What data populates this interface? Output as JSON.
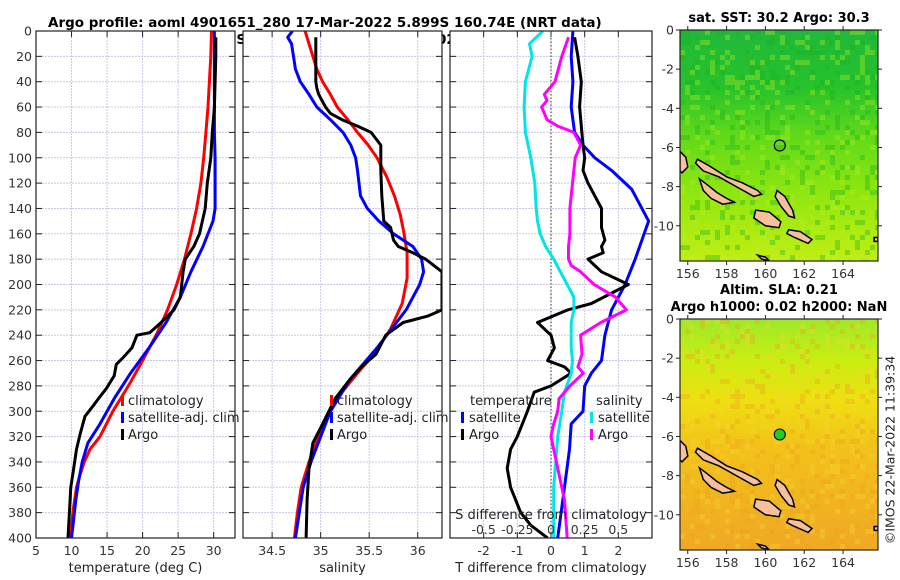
{
  "header": {
    "line1": "Argo profile: aoml 4901651_280 17-Mar-2022 5.899S 160.74E (NRT data)",
    "line2": "Climatology: CARS2009. Satellite-adj clim: synTS_20220317.nc (0.47d earlier)"
  },
  "colors": {
    "climatology": "#ff0000",
    "satellite": "#0000ff",
    "argo": "#000000",
    "sal_satellite": "#00e5e5",
    "sal_argo": "#ff00ff",
    "grid": "#c8c8e6",
    "land": "#f5c09a"
  },
  "copyright": "©IMOS 22-Mar-2022 11:39:34",
  "chart_data": [
    {
      "type": "line",
      "name": "temperature-profile",
      "xlabel": "temperature (deg C)",
      "ylabel": "",
      "xlim": [
        5,
        33
      ],
      "ylim": [
        400,
        0
      ],
      "xticks": [
        5,
        10,
        15,
        20,
        25,
        30
      ],
      "yticks": [
        0,
        20,
        40,
        60,
        80,
        100,
        120,
        140,
        160,
        180,
        200,
        220,
        240,
        260,
        280,
        300,
        320,
        340,
        360,
        380,
        400
      ],
      "grid": true,
      "legend": {
        "placement": "lower-right",
        "entries": [
          "climatology",
          "satellite-adj. clim",
          "Argo"
        ]
      },
      "series": [
        {
          "name": "climatology",
          "color": "#ff0000",
          "x": [
            29.7,
            29.6,
            29.4,
            29.2,
            28.9,
            28.6,
            28.2,
            27.6,
            26.8,
            25.9,
            24.8,
            23.5,
            21.9,
            20.0,
            18.0,
            15.8,
            14.0,
            12.6,
            11.8,
            11.2,
            10.7,
            10.3,
            10.0,
            9.8
          ],
          "depth": [
            0,
            20,
            40,
            60,
            80,
            100,
            120,
            140,
            160,
            180,
            200,
            220,
            240,
            260,
            280,
            300,
            320,
            330,
            340,
            350,
            360,
            375,
            390,
            400
          ]
        },
        {
          "name": "satellite-adj. clim",
          "color": "#0000ff",
          "x": [
            30.1,
            30.1,
            30.1,
            30.1,
            30.1,
            30.2,
            30.2,
            30.2,
            29.9,
            28.5,
            26.8,
            25.3,
            23.3,
            20.9,
            18.3,
            16.0,
            14.0,
            12.3,
            11.5,
            11.0,
            10.6,
            10.2,
            10.0
          ],
          "depth": [
            0,
            20,
            40,
            60,
            80,
            100,
            120,
            140,
            150,
            170,
            190,
            210,
            230,
            250,
            270,
            290,
            310,
            325,
            340,
            355,
            370,
            390,
            400
          ]
        },
        {
          "name": "Argo",
          "color": "#000000",
          "x": [
            30.3,
            30.3,
            30.2,
            30.1,
            29.8,
            29.6,
            29.1,
            28.8,
            28.0,
            27.2,
            26.0,
            25.7,
            25.5,
            25.3,
            24.4,
            22.6,
            21.0,
            19.2,
            18.5,
            17.2,
            16.3,
            16.0,
            14.9,
            13.8,
            13.0,
            11.9,
            11.2,
            10.7,
            10.3,
            9.9,
            9.7,
            9.5
          ],
          "depth": [
            5,
            20,
            40,
            60,
            80,
            100,
            120,
            140,
            160,
            170,
            180,
            190,
            200,
            210,
            220,
            230,
            238,
            240,
            250,
            258,
            263,
            272,
            282,
            290,
            296,
            304,
            318,
            330,
            345,
            360,
            380,
            400
          ]
        }
      ]
    },
    {
      "type": "line",
      "name": "salinity-profile",
      "xlabel": "salinity",
      "xlim": [
        34.2,
        36.25
      ],
      "ylim": [
        400,
        0
      ],
      "xticks": [
        34.5,
        35,
        35.5,
        36
      ],
      "grid": true,
      "legend": {
        "placement": "lower-right",
        "entries": [
          "climatology",
          "satellite-adj. clim",
          "Argo"
        ]
      },
      "series": [
        {
          "name": "climatology",
          "color": "#ff0000",
          "x": [
            34.84,
            34.88,
            34.92,
            34.96,
            35.02,
            35.1,
            35.17,
            35.28,
            35.38,
            35.49,
            35.58,
            35.68,
            35.76,
            35.82,
            35.86,
            35.89,
            35.89,
            35.84,
            35.72,
            35.55,
            35.38,
            35.22,
            35.1,
            34.98,
            34.88,
            34.8,
            34.76,
            34.73
          ],
          "depth": [
            0,
            10,
            20,
            30,
            40,
            50,
            60,
            70,
            80,
            90,
            100,
            115,
            130,
            145,
            160,
            175,
            195,
            215,
            235,
            255,
            270,
            285,
            300,
            320,
            340,
            360,
            380,
            400
          ]
        },
        {
          "name": "satellite-adj. clim",
          "color": "#0000ff",
          "x": [
            34.71,
            34.66,
            34.7,
            34.72,
            34.74,
            34.79,
            34.88,
            34.96,
            35.1,
            35.23,
            35.31,
            35.36,
            35.38,
            35.41,
            35.48,
            35.6,
            35.75,
            35.95,
            36.04,
            36.06,
            36.02,
            35.88,
            35.58,
            35.3,
            35.1,
            35.0,
            34.9,
            34.82,
            34.78,
            34.74
          ],
          "depth": [
            0,
            5,
            10,
            20,
            30,
            40,
            50,
            60,
            70,
            80,
            90,
            100,
            110,
            130,
            140,
            150,
            160,
            170,
            180,
            190,
            200,
            220,
            250,
            275,
            300,
            320,
            340,
            360,
            380,
            400
          ]
        },
        {
          "name": "Argo",
          "color": "#000000",
          "x": [
            34.95,
            34.95,
            34.95,
            34.95,
            34.96,
            34.98,
            35.05,
            35.1,
            35.22,
            35.38,
            35.52,
            35.62,
            35.62,
            35.63,
            35.65,
            35.72,
            35.75,
            35.8,
            35.95,
            36.08,
            36.25,
            36.25,
            36.1,
            35.85,
            35.67,
            35.57,
            35.42,
            35.3,
            35.15,
            35.02,
            34.92,
            34.88,
            34.86,
            34.85
          ],
          "depth": [
            5,
            20,
            30,
            40,
            45,
            50,
            60,
            65,
            70,
            75,
            80,
            90,
            110,
            130,
            150,
            155,
            165,
            170,
            175,
            180,
            190,
            220,
            225,
            230,
            240,
            255,
            265,
            275,
            290,
            310,
            325,
            345,
            370,
            400
          ]
        }
      ]
    },
    {
      "type": "line",
      "name": "difference-profile",
      "xlabel": "T difference from climatology",
      "x2label": "S difference from climatology",
      "xlim": [
        -3,
        3
      ],
      "x2lim": [
        -0.75,
        0.75
      ],
      "ylim": [
        400,
        0
      ],
      "xticks": [
        -2,
        -1,
        0,
        1,
        2
      ],
      "x2ticks": [
        -0.5,
        -0.25,
        0,
        0.25,
        0.5
      ],
      "grid": true,
      "legend": {
        "placement": "lower",
        "groups": [
          {
            "title": "temperature",
            "entries": [
              "satellite",
              "Argo"
            ]
          },
          {
            "title": "salinity",
            "entries": [
              "satellite",
              "Argo"
            ]
          }
        ]
      },
      "series": [
        {
          "name": "temperature satellite",
          "color": "#0000ff",
          "axis": "T",
          "x": [
            0.65,
            0.6,
            0.65,
            0.6,
            0.65,
            0.7,
            0.95,
            1.3,
            1.8,
            2.4,
            2.9,
            2.7,
            2.5,
            2.2,
            1.8,
            1.6,
            1.5,
            1.2,
            1.0,
            0.95,
            0.6,
            0.55,
            0.35,
            0.2
          ],
          "depth": [
            0,
            20,
            40,
            60,
            70,
            80,
            90,
            100,
            110,
            125,
            150,
            165,
            180,
            200,
            220,
            240,
            260,
            270,
            280,
            300,
            310,
            330,
            370,
            400
          ]
        },
        {
          "name": "temperature Argo",
          "color": "#000000",
          "axis": "T",
          "x": [
            0.7,
            0.8,
            0.9,
            0.85,
            0.9,
            0.95,
            1.0,
            0.95,
            1.1,
            1.5,
            1.5,
            1.6,
            1.5,
            1.55,
            1.1,
            1.5,
            2.3,
            1.2,
            0.5,
            -0.4,
            0.0,
            0.1,
            -0.1,
            0.4,
            0.6,
            0.0,
            -0.5,
            -0.7,
            -1.0,
            -1.2,
            -1.3,
            -1.2,
            -0.9,
            -0.6,
            -0.1
          ],
          "depth": [
            5,
            20,
            40,
            60,
            75,
            90,
            100,
            110,
            120,
            140,
            155,
            165,
            170,
            175,
            180,
            190,
            200,
            215,
            220,
            230,
            240,
            250,
            260,
            265,
            270,
            280,
            285,
            300,
            320,
            330,
            345,
            360,
            380,
            390,
            400
          ]
        },
        {
          "name": "salinity satellite",
          "color": "#00e5e5",
          "axis": "S",
          "x": [
            -0.06,
            -0.16,
            -0.14,
            -0.19,
            -0.2,
            -0.19,
            -0.15,
            -0.12,
            -0.11,
            -0.1,
            -0.08,
            -0.04,
            0.02,
            0.07,
            0.12,
            0.17,
            0.17,
            0.15,
            0.15,
            0.16,
            0.15,
            0.1,
            0.08,
            0.05,
            0.02,
            0.02
          ],
          "depth": [
            0,
            10,
            20,
            40,
            60,
            80,
            100,
            120,
            140,
            150,
            160,
            170,
            180,
            190,
            200,
            210,
            220,
            230,
            250,
            260,
            270,
            285,
            300,
            320,
            360,
            400
          ]
        },
        {
          "name": "salinity Argo",
          "color": "#ff00ff",
          "axis": "S",
          "x": [
            0.13,
            0.08,
            0.03,
            -0.05,
            -0.03,
            -0.07,
            -0.03,
            0.05,
            0.17,
            0.22,
            0.18,
            0.16,
            0.14,
            0.14,
            0.13,
            0.13,
            0.15,
            0.22,
            0.32,
            0.48,
            0.56,
            0.37,
            0.22,
            0.23,
            0.2,
            0.24,
            0.14,
            0.06,
            0.05,
            0.02,
            0.0,
            0.04,
            0.1,
            0.12
          ],
          "depth": [
            5,
            20,
            40,
            50,
            55,
            60,
            70,
            75,
            80,
            90,
            100,
            120,
            140,
            160,
            170,
            180,
            185,
            190,
            200,
            210,
            220,
            230,
            240,
            255,
            265,
            270,
            280,
            290,
            300,
            310,
            320,
            340,
            370,
            400
          ]
        }
      ]
    },
    {
      "type": "heatmap",
      "name": "sst-map",
      "title": "sat. SST: 30.2 Argo: 30.3",
      "xlim": [
        155.6,
        165.8
      ],
      "ylim": [
        -11.8,
        0
      ],
      "xticks": [
        156,
        158,
        160,
        162,
        164
      ],
      "yticks": [
        0,
        -2,
        -4,
        -6,
        -8,
        -10
      ],
      "marker": {
        "lon": 160.74,
        "lat": -5.899,
        "style": "open-circle"
      }
    },
    {
      "type": "heatmap",
      "name": "sla-map",
      "title": "Altim. SLA: 0.21",
      "subtitle": "Argo h1000: 0.02 h2000: NaN",
      "xlim": [
        155.6,
        165.8
      ],
      "ylim": [
        -11.8,
        0
      ],
      "xticks": [
        156,
        158,
        160,
        162,
        164
      ],
      "yticks": [
        0,
        -2,
        -4,
        -6,
        -8,
        -10
      ],
      "marker": {
        "lon": 160.74,
        "lat": -5.899,
        "style": "filled-circle",
        "color": "#22cc22"
      }
    }
  ]
}
